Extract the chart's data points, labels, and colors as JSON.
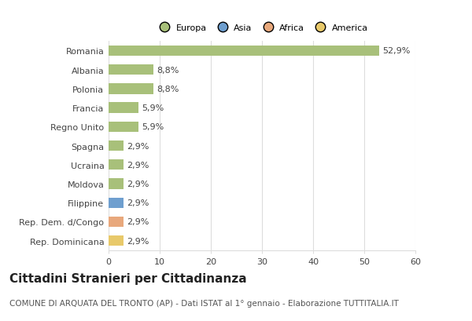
{
  "categories": [
    "Rep. Dominicana",
    "Rep. Dem. d/Congo",
    "Filippine",
    "Moldova",
    "Ucraina",
    "Spagna",
    "Regno Unito",
    "Francia",
    "Polonia",
    "Albania",
    "Romania"
  ],
  "values": [
    2.9,
    2.9,
    2.9,
    2.9,
    2.9,
    2.9,
    5.9,
    5.9,
    8.8,
    8.8,
    52.9
  ],
  "labels": [
    "2,9%",
    "2,9%",
    "2,9%",
    "2,9%",
    "2,9%",
    "2,9%",
    "5,9%",
    "5,9%",
    "8,8%",
    "8,8%",
    "52,9%"
  ],
  "colors": [
    "#e8c96a",
    "#e8a87c",
    "#6f9fcf",
    "#a8c07a",
    "#a8c07a",
    "#a8c07a",
    "#a8c07a",
    "#a8c07a",
    "#a8c07a",
    "#a8c07a",
    "#a8c07a"
  ],
  "legend_labels": [
    "Europa",
    "Asia",
    "Africa",
    "America"
  ],
  "legend_colors": [
    "#a8c07a",
    "#6f9fcf",
    "#e8a87c",
    "#e8c96a"
  ],
  "title": "Cittadini Stranieri per Cittadinanza",
  "subtitle": "COMUNE DI ARQUATA DEL TRONTO (AP) - Dati ISTAT al 1° gennaio - Elaborazione TUTTITALIA.IT",
  "xlim": [
    0,
    60
  ],
  "xticks": [
    0,
    10,
    20,
    30,
    40,
    50,
    60
  ],
  "background_color": "#ffffff",
  "grid_color": "#dddddd",
  "bar_height": 0.55,
  "label_fontsize": 8,
  "tick_fontsize": 8,
  "title_fontsize": 11,
  "subtitle_fontsize": 7.5
}
